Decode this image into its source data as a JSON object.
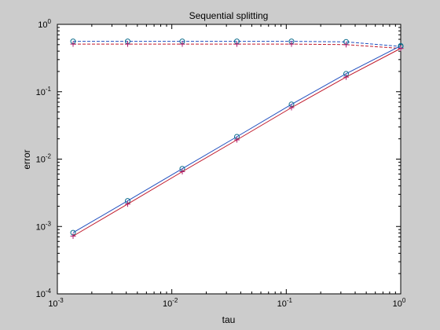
{
  "chart_data": {
    "type": "line",
    "title": "Sequential splitting",
    "xlabel": "tau",
    "ylabel": "error",
    "xscale": "log",
    "yscale": "log",
    "xlim": [
      0.001,
      1
    ],
    "ylim": [
      0.0001,
      1
    ],
    "grid": false,
    "x_ticks": [
      {
        "base": "10",
        "exp": "-3"
      },
      {
        "base": "10",
        "exp": "-2"
      },
      {
        "base": "10",
        "exp": "-1"
      },
      {
        "base": "10",
        "exp": "0"
      }
    ],
    "y_ticks": [
      {
        "base": "10",
        "exp": "-4"
      },
      {
        "base": "10",
        "exp": "-3"
      },
      {
        "base": "10",
        "exp": "-2"
      },
      {
        "base": "10",
        "exp": "-1"
      },
      {
        "base": "10",
        "exp": "0"
      }
    ],
    "x": [
      0.001372,
      0.004115,
      0.012346,
      0.037037,
      0.111111,
      0.333333,
      1.0
    ],
    "series": [
      {
        "color": "#1f4fbf",
        "dash": "dashed",
        "marker": "circle",
        "values": [
          0.56,
          0.56,
          0.56,
          0.56,
          0.56,
          0.55,
          0.47
        ]
      },
      {
        "color": "#c0182a",
        "dash": "dashed",
        "marker": "plus",
        "values": [
          0.51,
          0.51,
          0.51,
          0.51,
          0.51,
          0.5,
          0.44
        ]
      },
      {
        "color": "#1f4fbf",
        "dash": "solid",
        "marker": "circle",
        "values": [
          0.00081,
          0.0024,
          0.0072,
          0.0215,
          0.065,
          0.185,
          0.48
        ]
      },
      {
        "color": "#c0182a",
        "dash": "solid",
        "marker": "plus",
        "values": [
          0.00072,
          0.00215,
          0.0065,
          0.0193,
          0.058,
          0.165,
          0.44
        ]
      }
    ],
    "marker_color": "#0a6b8c",
    "plus_marker_color": "#b01e6e"
  }
}
